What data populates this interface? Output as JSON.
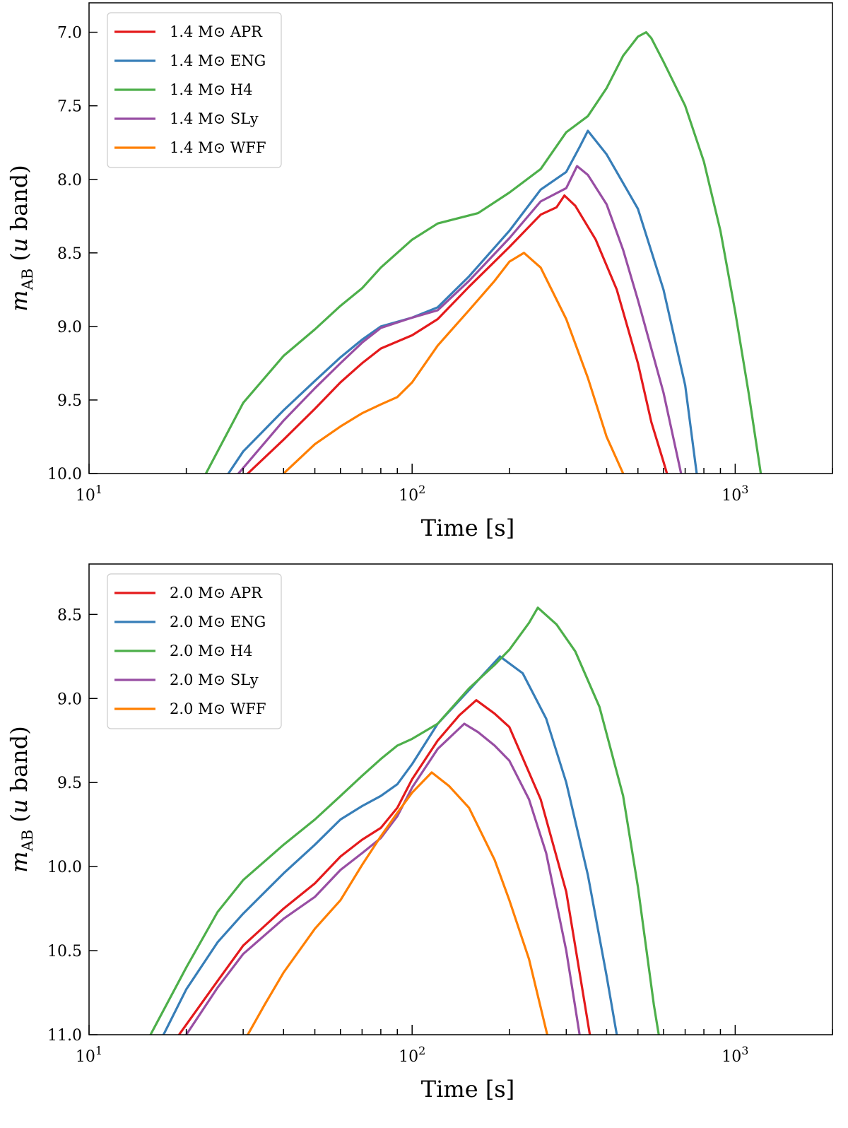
{
  "chart_data": [
    {
      "type": "line",
      "xscale": "log",
      "xlim": [
        10,
        2000
      ],
      "ylim": [
        10.0,
        6.8
      ],
      "yaxis_inverted": true,
      "xlabel": "Time [s]",
      "ylabel": "m_AB (u band)",
      "ylabel_parts": {
        "base": "m",
        "sub": "AB",
        "pre": " (",
        "italic": "u",
        "post": " band)"
      },
      "yticks": [
        7.0,
        7.5,
        8.0,
        8.5,
        9.0,
        9.5,
        10.0
      ],
      "ytick_labels": [
        "7.0",
        "7.5",
        "8.0",
        "8.5",
        "9.0",
        "9.5",
        "10.0"
      ],
      "xticks": [
        {
          "value": 10,
          "base": "10",
          "exp": "1"
        },
        {
          "value": 100,
          "base": "10",
          "exp": "2"
        },
        {
          "value": 1000,
          "base": "10",
          "exp": "3"
        }
      ],
      "legend": {
        "placement": "top-left"
      },
      "series": [
        {
          "name": "1.4 M⊙ APR",
          "color": "#e41a1c",
          "x": [
            31,
            40,
            50,
            60,
            70,
            80,
            100,
            120,
            150,
            200,
            250,
            280,
            296,
            320,
            370,
            430,
            500,
            550,
            600,
            615
          ],
          "y": [
            10.0,
            9.77,
            9.56,
            9.38,
            9.25,
            9.15,
            9.06,
            8.95,
            8.73,
            8.46,
            8.24,
            8.19,
            8.11,
            8.18,
            8.41,
            8.75,
            9.25,
            9.65,
            9.92,
            10.0
          ]
        },
        {
          "name": "1.4 M⊙ ENG",
          "color": "#377eb8",
          "x": [
            27,
            30,
            40,
            50,
            60,
            70,
            80,
            100,
            120,
            150,
            200,
            250,
            300,
            330,
            350,
            400,
            500,
            600,
            700,
            760
          ],
          "y": [
            10.0,
            9.85,
            9.57,
            9.37,
            9.21,
            9.09,
            9.0,
            8.94,
            8.87,
            8.66,
            8.35,
            8.07,
            7.95,
            7.78,
            7.67,
            7.83,
            8.2,
            8.75,
            9.4,
            10.0
          ]
        },
        {
          "name": "1.4 M⊙ H4",
          "color": "#4daf4a",
          "x": [
            23,
            30,
            40,
            50,
            60,
            70,
            80,
            100,
            120,
            160,
            200,
            250,
            300,
            350,
            400,
            450,
            500,
            530,
            550,
            600,
            700,
            800,
            900,
            1000,
            1100,
            1200
          ],
          "y": [
            10.0,
            9.52,
            9.2,
            9.02,
            8.86,
            8.74,
            8.6,
            8.41,
            8.3,
            8.23,
            8.09,
            7.93,
            7.68,
            7.57,
            7.38,
            7.16,
            7.03,
            7.0,
            7.04,
            7.2,
            7.5,
            7.88,
            8.35,
            8.9,
            9.45,
            10.0
          ]
        },
        {
          "name": "1.4 M⊙ SLy",
          "color": "#984ea3",
          "x": [
            29,
            40,
            50,
            60,
            70,
            80,
            100,
            120,
            150,
            200,
            250,
            300,
            324,
            350,
            400,
            450,
            500,
            600,
            680
          ],
          "y": [
            10.0,
            9.64,
            9.42,
            9.25,
            9.11,
            9.01,
            8.94,
            8.89,
            8.69,
            8.4,
            8.15,
            8.06,
            7.91,
            7.97,
            8.17,
            8.48,
            8.82,
            9.45,
            10.0
          ]
        },
        {
          "name": "1.4 M⊙ WFF",
          "color": "#ff7f00",
          "x": [
            40,
            50,
            60,
            70,
            80,
            90,
            100,
            120,
            150,
            180,
            200,
            222,
            250,
            300,
            350,
            400,
            450
          ],
          "y": [
            10.0,
            9.8,
            9.68,
            9.59,
            9.53,
            9.48,
            9.38,
            9.13,
            8.89,
            8.69,
            8.56,
            8.5,
            8.6,
            8.95,
            9.35,
            9.75,
            10.0
          ]
        }
      ]
    },
    {
      "type": "line",
      "xscale": "log",
      "xlim": [
        10,
        2000
      ],
      "ylim": [
        11.0,
        8.2
      ],
      "yaxis_inverted": true,
      "xlabel": "Time [s]",
      "ylabel": "m_AB (u band)",
      "ylabel_parts": {
        "base": "m",
        "sub": "AB",
        "pre": " (",
        "italic": "u",
        "post": " band)"
      },
      "yticks": [
        8.5,
        9.0,
        9.5,
        10.0,
        10.5,
        11.0
      ],
      "ytick_labels": [
        "8.5",
        "9.0",
        "9.5",
        "10.0",
        "10.5",
        "11.0"
      ],
      "xticks": [
        {
          "value": 10,
          "base": "10",
          "exp": "1"
        },
        {
          "value": 100,
          "base": "10",
          "exp": "2"
        },
        {
          "value": 1000,
          "base": "10",
          "exp": "3"
        }
      ],
      "legend": {
        "placement": "top-left"
      },
      "series": [
        {
          "name": "2.0 M⊙ APR",
          "color": "#e41a1c",
          "x": [
            19,
            25,
            30,
            40,
            50,
            60,
            70,
            80,
            90,
            100,
            120,
            140,
            158,
            180,
            200,
            250,
            300,
            355
          ],
          "y": [
            11.0,
            10.68,
            10.47,
            10.25,
            10.1,
            9.94,
            9.84,
            9.77,
            9.65,
            9.48,
            9.25,
            9.1,
            9.01,
            9.09,
            9.17,
            9.6,
            10.15,
            11.0
          ]
        },
        {
          "name": "2.0 M⊙ ENG",
          "color": "#377eb8",
          "x": [
            17,
            20,
            25,
            30,
            40,
            50,
            60,
            70,
            80,
            90,
            100,
            120,
            150,
            187,
            220,
            260,
            300,
            350,
            400,
            430
          ],
          "y": [
            11.0,
            10.73,
            10.45,
            10.28,
            10.04,
            9.87,
            9.72,
            9.64,
            9.58,
            9.51,
            9.39,
            9.15,
            8.95,
            8.75,
            8.85,
            9.12,
            9.5,
            10.05,
            10.65,
            11.0
          ]
        },
        {
          "name": "2.0 M⊙ H4",
          "color": "#4daf4a",
          "x": [
            15.5,
            20,
            25,
            30,
            40,
            50,
            60,
            70,
            80,
            90,
            100,
            120,
            150,
            180,
            200,
            230,
            245,
            280,
            320,
            380,
            450,
            500,
            560,
            580
          ],
          "y": [
            11.0,
            10.6,
            10.27,
            10.08,
            9.87,
            9.72,
            9.58,
            9.46,
            9.36,
            9.28,
            9.24,
            9.15,
            8.94,
            8.8,
            8.71,
            8.55,
            8.46,
            8.56,
            8.72,
            9.05,
            9.58,
            10.12,
            10.82,
            11.0
          ]
        },
        {
          "name": "2.0 M⊙ SLy",
          "color": "#984ea3",
          "x": [
            20,
            25,
            30,
            40,
            50,
            60,
            70,
            80,
            90,
            100,
            120,
            145,
            160,
            180,
            200,
            230,
            260,
            300,
            330
          ],
          "y": [
            11.0,
            10.72,
            10.52,
            10.31,
            10.18,
            10.02,
            9.92,
            9.83,
            9.7,
            9.53,
            9.3,
            9.15,
            9.2,
            9.28,
            9.37,
            9.6,
            9.92,
            10.5,
            11.0
          ]
        },
        {
          "name": "2.0 M⊙ WFF",
          "color": "#ff7f00",
          "x": [
            31,
            35,
            40,
            50,
            60,
            70,
            80,
            90,
            100,
            115,
            130,
            150,
            180,
            200,
            230,
            262
          ],
          "y": [
            11.0,
            10.82,
            10.63,
            10.37,
            10.2,
            9.99,
            9.82,
            9.68,
            9.56,
            9.44,
            9.52,
            9.65,
            9.96,
            10.2,
            10.55,
            11.0
          ]
        }
      ]
    }
  ]
}
